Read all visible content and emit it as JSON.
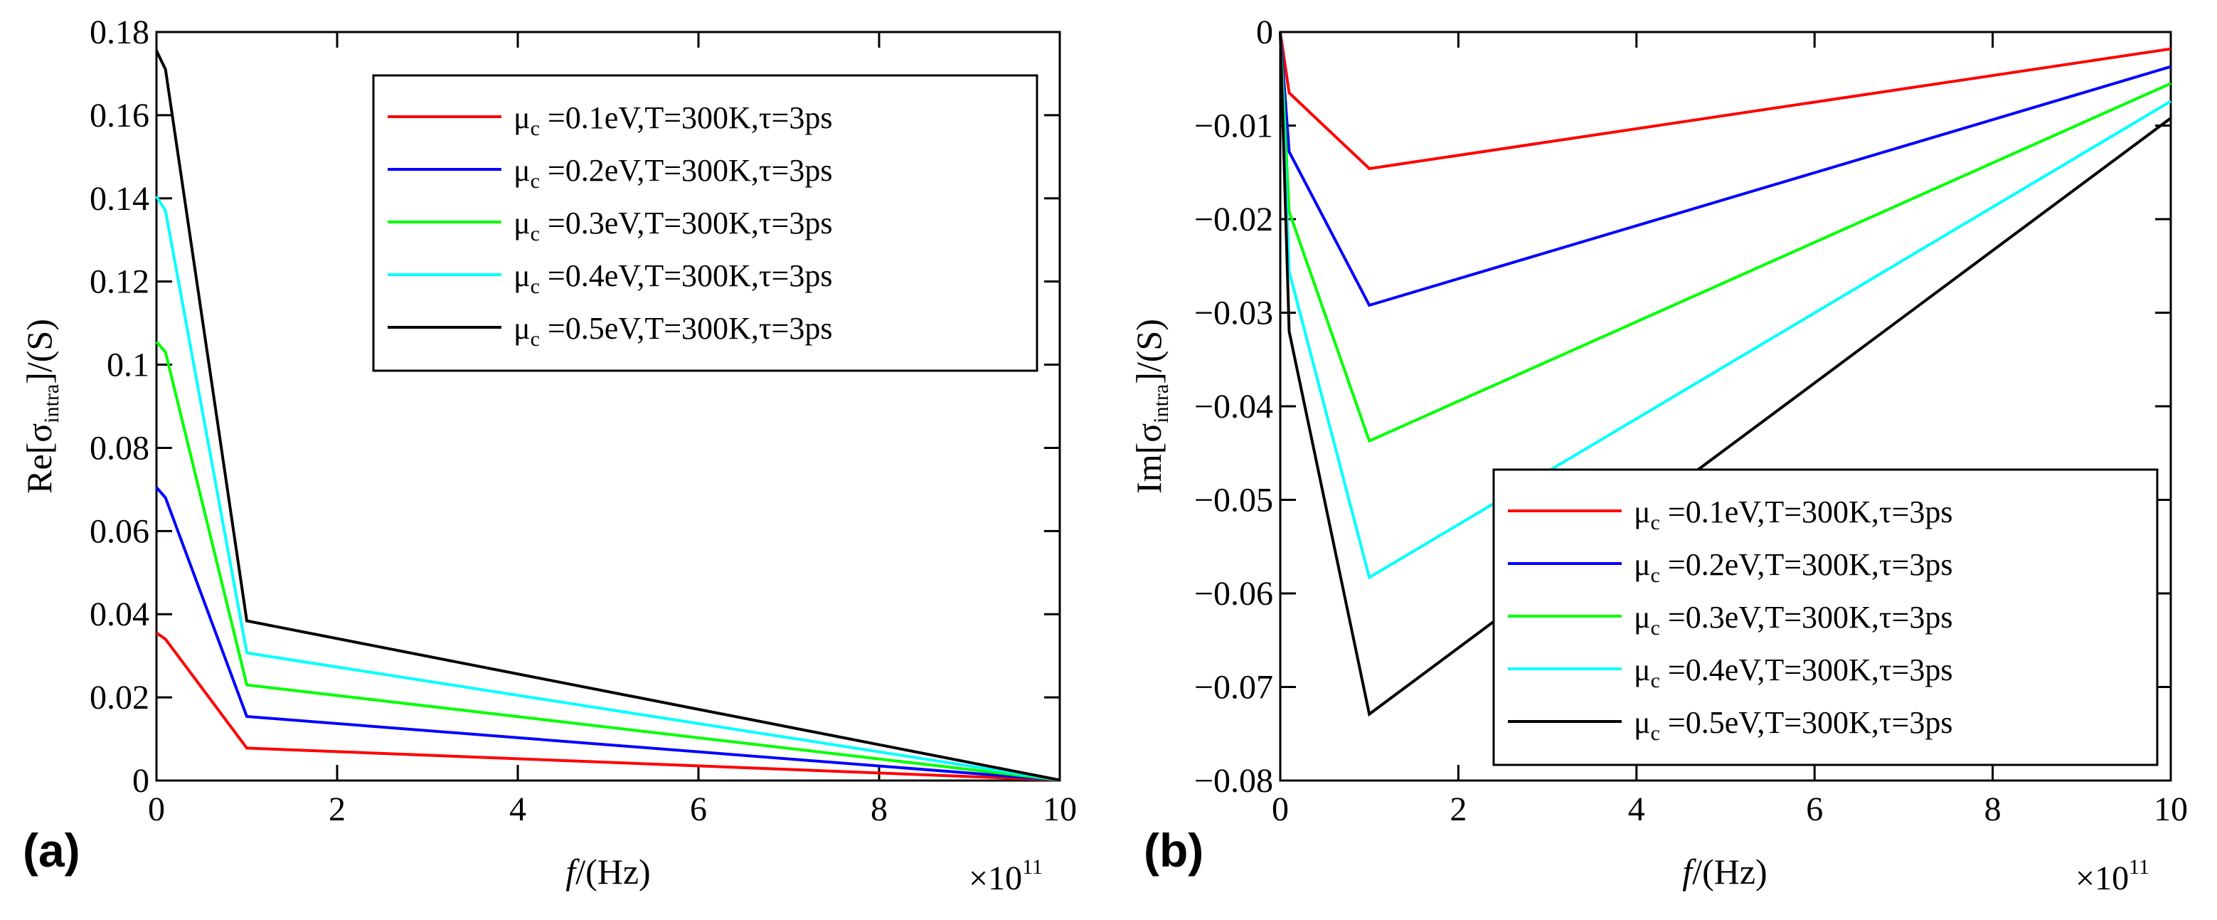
{
  "chart_data": [
    {
      "id": "a",
      "type": "line",
      "panel_label": "(a)",
      "ylabel": {
        "prefix": "Re[",
        "symbol": "σ",
        "sub": "intra",
        "suffix": "]/(S)"
      },
      "xlabel": {
        "italic": "f",
        "rest": "/(Hz)"
      },
      "x_multiplier": {
        "prefix": "×10",
        "exp": "11"
      },
      "xlim": [
        0,
        10
      ],
      "ylim": [
        0,
        0.18
      ],
      "xticks": [
        0,
        2,
        4,
        6,
        8,
        10
      ],
      "xtick_labels": [
        "0",
        "2",
        "4",
        "6",
        "8",
        "10"
      ],
      "yticks": [
        0,
        0.02,
        0.04,
        0.06,
        0.08,
        0.1,
        0.12,
        0.14,
        0.16,
        0.18
      ],
      "ytick_labels": [
        "0",
        "0.02",
        "0.04",
        "0.06",
        "0.08",
        "0.1",
        "0.12",
        "0.14",
        "0.16",
        "0.18"
      ],
      "legend_position": "top-right",
      "x": [
        0,
        0.1,
        1,
        10
      ],
      "series": [
        {
          "name_pre": "μ",
          "name_sub": "c",
          "name_post": " =0.1eV,T=300K,τ=3ps",
          "color": "#ff0000",
          "values": [
            0.0355,
            0.034,
            0.0078,
            0.0001
          ]
        },
        {
          "name_pre": "μ",
          "name_sub": "c",
          "name_post": " =0.2eV,T=300K,τ=3ps",
          "color": "#0000ff",
          "values": [
            0.0705,
            0.068,
            0.0154,
            0.0001
          ]
        },
        {
          "name_pre": "μ",
          "name_sub": "c",
          "name_post": " =0.3eV,T=300K,τ=3ps",
          "color": "#00ff00",
          "values": [
            0.1055,
            0.103,
            0.023,
            0.0001
          ]
        },
        {
          "name_pre": "μ",
          "name_sub": "c",
          "name_post": " =0.4eV,T=300K,τ=3ps",
          "color": "#00ffff",
          "values": [
            0.1405,
            0.137,
            0.0307,
            0.0001
          ]
        },
        {
          "name_pre": "μ",
          "name_sub": "c",
          "name_post": " =0.5eV,T=300K,τ=3ps",
          "color": "#000000",
          "values": [
            0.1755,
            0.171,
            0.0384,
            0.0001
          ]
        }
      ]
    },
    {
      "id": "b",
      "type": "line",
      "panel_label": "(b)",
      "ylabel": {
        "prefix": "Im[",
        "symbol": "σ",
        "sub": "intra",
        "suffix": "]/(S)"
      },
      "xlabel": {
        "italic": "f",
        "rest": "/(Hz)"
      },
      "x_multiplier": {
        "prefix": "×10",
        "exp": "11"
      },
      "xlim": [
        0,
        10
      ],
      "ylim": [
        -0.08,
        0
      ],
      "xticks": [
        0,
        2,
        4,
        6,
        8,
        10
      ],
      "xtick_labels": [
        "0",
        "2",
        "4",
        "6",
        "8",
        "10"
      ],
      "yticks": [
        -0.08,
        -0.07,
        -0.06,
        -0.05,
        -0.04,
        -0.03,
        -0.02,
        -0.01,
        0
      ],
      "ytick_labels": [
        "−0.08",
        "−0.07",
        "−0.06",
        "−0.05",
        "−0.04",
        "−0.03",
        "−0.02",
        "−0.01",
        "0"
      ],
      "legend_position": "bottom-right",
      "x": [
        0,
        0.1,
        1,
        10
      ],
      "series": [
        {
          "name_pre": "μ",
          "name_sub": "c",
          "name_post": " =0.1eV,T=300K,τ=3ps",
          "color": "#ff0000",
          "values": [
            0,
            -0.0065,
            -0.0146,
            -0.0018
          ]
        },
        {
          "name_pre": "μ",
          "name_sub": "c",
          "name_post": " =0.2eV,T=300K,τ=3ps",
          "color": "#0000ff",
          "values": [
            0,
            -0.0128,
            -0.0292,
            -0.0037
          ]
        },
        {
          "name_pre": "μ",
          "name_sub": "c",
          "name_post": " =0.3eV,T=300K,τ=3ps",
          "color": "#00ff00",
          "values": [
            0,
            -0.0192,
            -0.0437,
            -0.0055
          ]
        },
        {
          "name_pre": "μ",
          "name_sub": "c",
          "name_post": " =0.4eV,T=300K,τ=3ps",
          "color": "#00ffff",
          "values": [
            0,
            -0.0256,
            -0.0583,
            -0.0074
          ]
        },
        {
          "name_pre": "μ",
          "name_sub": "c",
          "name_post": " =0.5eV,T=300K,τ=3ps",
          "color": "#000000",
          "values": [
            0,
            -0.032,
            -0.0729,
            -0.0092
          ]
        }
      ]
    }
  ]
}
